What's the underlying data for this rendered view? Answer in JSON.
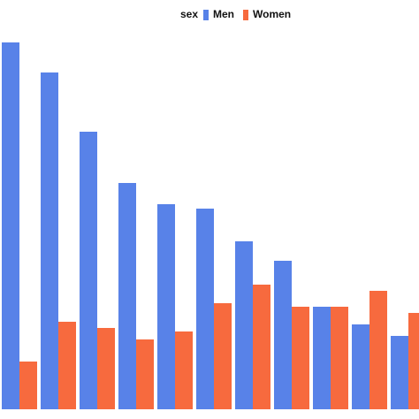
{
  "chart_data": {
    "type": "bar",
    "legend_title": "sex",
    "categories": [
      null,
      null,
      null,
      null,
      null,
      null,
      null,
      null,
      null,
      null,
      null
    ],
    "series": [
      {
        "name": "Men",
        "color": "#5882e8",
        "values": [
          415,
          381,
          314,
          256,
          232,
          227,
          190,
          168,
          116,
          96,
          83
        ]
      },
      {
        "name": "Women",
        "color": "#f76a3e",
        "values": [
          54,
          99,
          92,
          79,
          88,
          120,
          141,
          116,
          116,
          134,
          109
        ]
      }
    ],
    "ylim": [
      0,
      415
    ]
  }
}
